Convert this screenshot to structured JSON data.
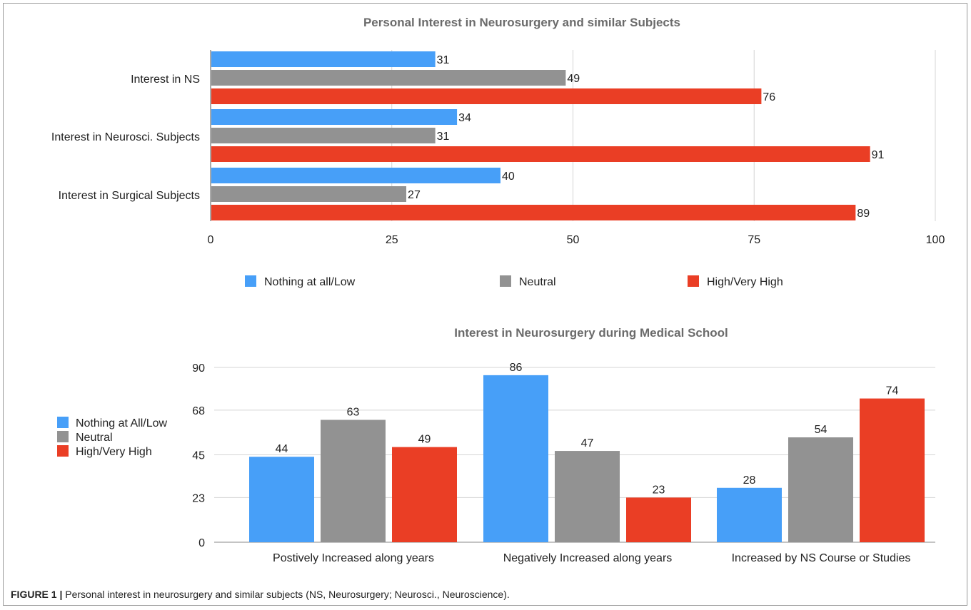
{
  "colors": {
    "blue": "#479ff8",
    "gray": "#929292",
    "red": "#ea3e25",
    "grid": "#d4d4d4",
    "text": "#222222",
    "title": "#6b6b6b"
  },
  "chart_data": [
    {
      "type": "bar",
      "orientation": "horizontal",
      "title": "Personal Interest in Neurosurgery and similar Subjects",
      "categories": [
        "Interest in NS",
        "Interest in Neurosci. Subjects",
        "Interest in Surgical Subjects"
      ],
      "series": [
        {
          "name": "Nothing at all/Low",
          "color": "#479ff8",
          "values": [
            31,
            34,
            40
          ]
        },
        {
          "name": "Neutral",
          "color": "#929292",
          "values": [
            49,
            31,
            27
          ]
        },
        {
          "name": "High/Very High",
          "color": "#ea3e25",
          "values": [
            76,
            91,
            89
          ]
        }
      ],
      "xlim": [
        0,
        100
      ],
      "ticks": [
        0,
        25,
        50,
        75,
        100
      ],
      "grid": true,
      "legend": "bottom"
    },
    {
      "type": "bar",
      "orientation": "vertical",
      "title": "Interest in Neurosurgery during Medical School",
      "categories": [
        "Postively Increased along years",
        "Negatively Increased along years",
        "Increased by NS Course or Studies"
      ],
      "series": [
        {
          "name": "Nothing at All/Low",
          "color": "#479ff8",
          "values": [
            44,
            86,
            28
          ]
        },
        {
          "name": "Neutral",
          "color": "#929292",
          "values": [
            63,
            47,
            54
          ]
        },
        {
          "name": "High/Very High",
          "color": "#ea3e25",
          "values": [
            49,
            23,
            74
          ]
        }
      ],
      "ylim": [
        0,
        90
      ],
      "ticks": [
        0,
        23,
        45,
        68,
        90
      ],
      "grid": true,
      "legend": "left"
    }
  ],
  "caption": {
    "label": "FIGURE 1 |",
    "text": " Personal interest in neurosurgery and similar subjects (NS, Neurosurgery; Neurosci., Neuroscience)."
  }
}
